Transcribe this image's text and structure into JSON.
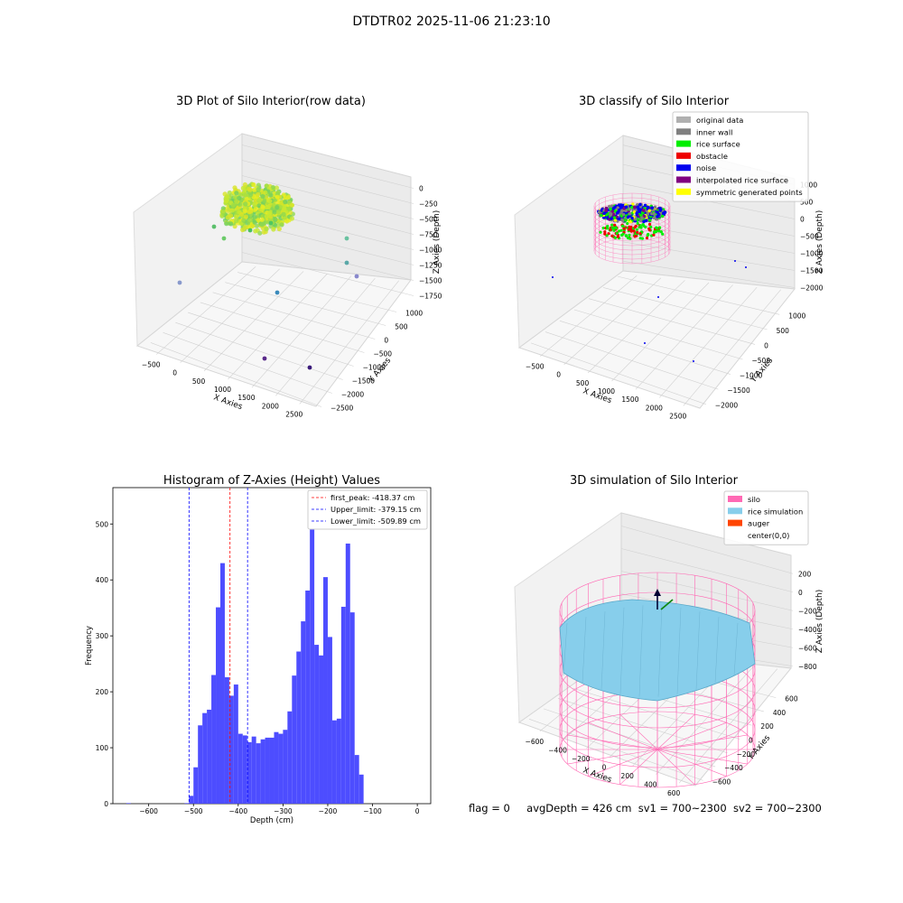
{
  "figure": {
    "suptitle": "DTDTR02 2025-11-06 21:23:10",
    "status": {
      "flag": "flag = 0",
      "avg_depth": "avgDepth = 426 cm",
      "sv1": "sv1 = 700~2300",
      "sv2": "sv2 = 700~2300"
    }
  },
  "plots": {
    "raw": {
      "title": "3D Plot of Silo Interior(row data)",
      "xlabel": "X Axies",
      "ylabel": "Y Axies",
      "zlabel": "Z Axies (Depth)",
      "xticks": [
        "−500",
        "0",
        "500",
        "1000",
        "1500",
        "2000",
        "2500"
      ],
      "yticks": [
        "1000",
        "500",
        "0",
        "−500",
        "−1000",
        "−1500",
        "−2000",
        "−2500"
      ],
      "zticks": [
        "0",
        "−250",
        "−500",
        "−750",
        "−1000",
        "−1250",
        "−1500",
        "−1750"
      ]
    },
    "classify": {
      "title": "3D classify of Silo Interior",
      "xlabel": "X Axies",
      "ylabel": "Y Axies",
      "zlabel": "Z Axies (Depth)",
      "xticks": [
        "−500",
        "0",
        "500",
        "1000",
        "1500",
        "2000",
        "2500"
      ],
      "yticks": [
        "1000",
        "500",
        "0",
        "−500",
        "−1000",
        "−1500",
        "−2000"
      ],
      "zticks": [
        "1000",
        "500",
        "0",
        "−500",
        "−1000",
        "−1500",
        "−2000"
      ],
      "legend": [
        {
          "label": "original data",
          "color": "#b0b0b0"
        },
        {
          "label": "inner wall",
          "color": "#808080"
        },
        {
          "label": "rice surface",
          "color": "#00ee00"
        },
        {
          "label": "obstacle",
          "color": "#ee0000"
        },
        {
          "label": "noise",
          "color": "#0000ee"
        },
        {
          "label": "interpolated rice surface",
          "color": "#800080"
        },
        {
          "label": "symmetric generated points",
          "color": "#ffff00"
        }
      ]
    },
    "simulation": {
      "title": "3D simulation of Silo Interior",
      "xlabel": "X Axies",
      "ylabel": "Y Axies",
      "zlabel": "Z Axies (Depth)",
      "xticks": [
        "−600",
        "−400",
        "−200",
        "0",
        "200",
        "400",
        "600"
      ],
      "yticks": [
        "600",
        "400",
        "200",
        "0",
        "−200",
        "−400",
        "−600"
      ],
      "zticks": [
        "200",
        "0",
        "−200",
        "−400",
        "−600",
        "−800"
      ],
      "legend": [
        {
          "label": "silo",
          "color": "#ff69b4"
        },
        {
          "label": "rice simulation",
          "color": "#87ceeb"
        },
        {
          "label": "auger",
          "color": "#ff4500"
        },
        {
          "label": "center(0,0)",
          "color": ""
        }
      ]
    }
  },
  "chart_data": {
    "type": "bar",
    "title": "Histogram of Z-Axies (Height) Values",
    "xlabel": "Depth (cm)",
    "ylabel": "Frequency",
    "xlim": [
      -680,
      30
    ],
    "ylim": [
      0,
      565
    ],
    "xticks": [
      -600,
      -500,
      -400,
      -300,
      -200,
      -100,
      0
    ],
    "yticks": [
      0,
      100,
      200,
      300,
      400,
      500
    ],
    "bin_width": 10,
    "bin_starts": [
      -650,
      -520,
      -510,
      -500,
      -490,
      -480,
      -470,
      -460,
      -450,
      -440,
      -430,
      -420,
      -410,
      -400,
      -390,
      -380,
      -370,
      -360,
      -350,
      -340,
      -330,
      -320,
      -310,
      -300,
      -290,
      -280,
      -270,
      -260,
      -250,
      -240,
      -230,
      -220,
      -210,
      -200,
      -190,
      -180,
      -170,
      -160,
      -150,
      -140,
      -130,
      -120,
      -110,
      -100,
      -90,
      -80,
      -70,
      -60,
      -50,
      -40,
      -30,
      -20,
      -10
    ],
    "values": [
      1,
      1,
      14,
      65,
      140,
      162,
      168,
      230,
      351,
      430,
      226,
      193,
      213,
      125,
      122,
      110,
      120,
      108,
      115,
      118,
      118,
      128,
      125,
      132,
      165,
      229,
      272,
      326,
      381,
      535,
      284,
      265,
      405,
      298,
      149,
      152,
      352,
      465,
      342,
      87,
      52,
      0,
      0,
      0,
      0,
      0,
      0,
      0,
      0,
      0,
      0,
      0,
      0
    ],
    "vlines": [
      {
        "label": "first_peak: -418.37 cm",
        "x": -418.37,
        "color": "#ff0000"
      },
      {
        "label": "Upper_limit: -379.15 cm",
        "x": -379.15,
        "color": "#0000ff"
      },
      {
        "label": "Lower_limit: -509.89 cm",
        "x": -509.89,
        "color": "#0000ff"
      }
    ],
    "bar_color": "#4d4dff",
    "legend_position": "top-right"
  }
}
